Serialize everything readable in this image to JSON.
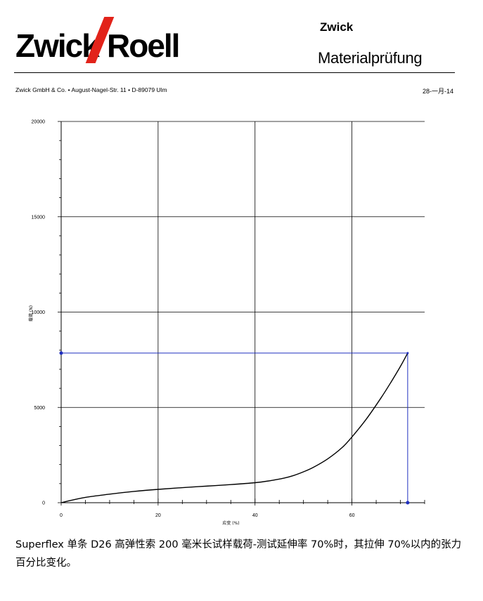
{
  "header": {
    "logo_text": "Zwick Roell",
    "logo_left": "Zwick",
    "logo_right": "Roell",
    "brand": "Zwick",
    "department": "Materialprüfung",
    "address": "Zwick GmbH & Co. • August-Nagel-Str. 11 • D-89079 Ulm",
    "date": "28-一月-14"
  },
  "colors": {
    "logo_accent": "#e2231a",
    "curve": "#000000",
    "marker": "#1f2fbf",
    "grid": "#000000"
  },
  "chart_data": {
    "type": "line",
    "title": "",
    "xlabel": "应变 (%)",
    "ylabel": "载荷 (N)",
    "xlim": [
      0,
      75
    ],
    "ylim": [
      0,
      20000
    ],
    "x_ticks": [
      0,
      20,
      40,
      60
    ],
    "y_ticks": [
      0,
      5000,
      10000,
      15000,
      20000
    ],
    "grid": true,
    "series": [
      {
        "x": [
          0,
          2,
          5,
          10,
          15,
          20,
          25,
          30,
          35,
          40,
          43,
          46,
          48,
          50,
          52,
          55,
          58,
          60,
          63,
          66,
          68,
          70,
          71.5
        ],
        "y": [
          0,
          120,
          280,
          450,
          590,
          700,
          790,
          870,
          950,
          1050,
          1150,
          1290,
          1430,
          1620,
          1850,
          2300,
          2900,
          3450,
          4400,
          5500,
          6300,
          7150,
          7850
        ]
      }
    ],
    "marker": {
      "x": 71.5,
      "y": 7850
    }
  },
  "caption": "Superflex 单条 D26 高弹性索 200 毫米长试样载荷-测试延伸率 70%时，其拉伸 70%以内的张力百分比变化。"
}
